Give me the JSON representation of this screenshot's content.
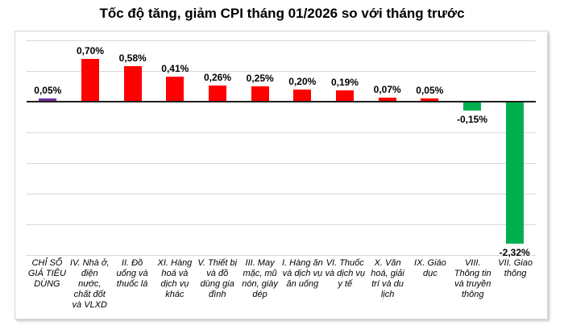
{
  "chart_data": {
    "type": "bar",
    "title": "Tốc độ tăng, giảm CPI tháng 01/2026 so với tháng trước",
    "categories": [
      "CHỈ SỐ GIÁ TIÊU DÙNG",
      "IV. Nhà ở, điện nước, chất đốt và VLXD",
      "II. Đồ uống và thuốc lá",
      "XI. Hàng hoá và dịch vụ khác",
      "V. Thiết bị và đồ dùng gia đình",
      "III. May mặc, mũ nón, giày dép",
      "I. Hàng ăn và dịch vụ ăn uống",
      "VI. Thuốc và dịch vụ y tế",
      "X. Văn hoá, giải trí và du lịch",
      "IX. Giáo dục",
      "VIII. Thông tin và truyền thông",
      "VII. Giao thông"
    ],
    "values": [
      0.05,
      0.7,
      0.58,
      0.41,
      0.26,
      0.25,
      0.2,
      0.19,
      0.07,
      0.05,
      -0.15,
      -2.32
    ],
    "data_labels": [
      "0,05%",
      "0,70%",
      "0,58%",
      "0,41%",
      "0,26%",
      "0,25%",
      "0,20%",
      "0,19%",
      "0,07%",
      "0,05%",
      "-0,15%",
      "-2,32%"
    ],
    "bar_colors": [
      "#7030A0",
      "#FF0000",
      "#FF0000",
      "#FF0000",
      "#FF0000",
      "#FF0000",
      "#FF0000",
      "#FF0000",
      "#FF0000",
      "#FF0000",
      "#00B050",
      "#00B050"
    ],
    "xlabel": "",
    "ylabel": "",
    "ylim": [
      -2.5,
      1.0
    ],
    "grid": true,
    "grid_interval": 0.5,
    "legend": "none",
    "colors": {
      "cpi_index_bar": "#7030A0",
      "positive_bar": "#FF0000",
      "negative_bar": "#00B050",
      "gridline": "#D9D9D9",
      "zero_axis": "#1F1F1F"
    }
  }
}
